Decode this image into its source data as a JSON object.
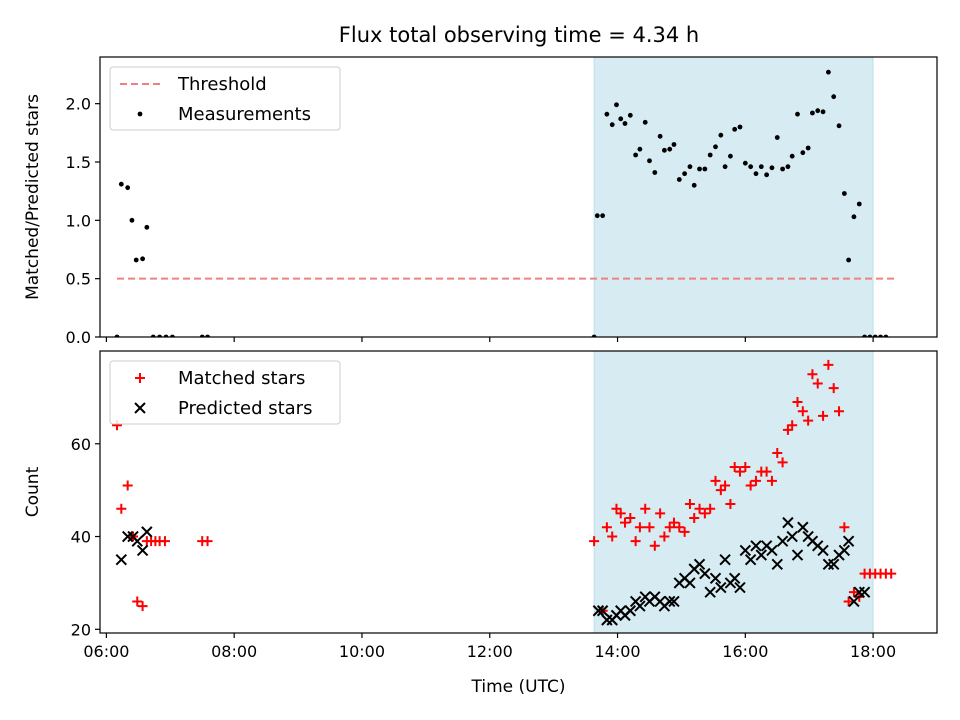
{
  "chart_data": [
    {
      "type": "scatter",
      "title": "Flux total observing time = 4.34 h",
      "ylabel": "Matched/Predicted stars",
      "xlabel": "",
      "xlim": [
        "05:54",
        "19:00"
      ],
      "ylim": [
        0,
        2.4
      ],
      "yticks": [
        0.0,
        0.5,
        1.0,
        1.5,
        2.0
      ],
      "ytick_labels": [
        "0.0",
        "0.5",
        "1.0",
        "1.5",
        "2.0"
      ],
      "xticks": [
        "06:00",
        "08:00",
        "10:00",
        "12:00",
        "14:00",
        "16:00",
        "18:00"
      ],
      "highlight_span": {
        "start": "13:38",
        "end": "18:00",
        "color": "#add8e6"
      },
      "legend": {
        "placement": "upper left",
        "entries": [
          "Threshold",
          "Measurements"
        ]
      },
      "series": [
        {
          "name": "Threshold",
          "style": "dashed-line",
          "color": "#f08080",
          "points": [
            [
              "06:10",
              0.5
            ],
            [
              "18:20",
              0.5
            ]
          ]
        },
        {
          "name": "Measurements",
          "style": "dot",
          "color": "#000000",
          "points": [
            [
              "06:10",
              0.0
            ],
            [
              "06:14",
              1.31
            ],
            [
              "06:20",
              1.28
            ],
            [
              "06:24",
              1.0
            ],
            [
              "06:28",
              0.66
            ],
            [
              "06:34",
              0.67
            ],
            [
              "06:38",
              0.94
            ],
            [
              "06:44",
              0.0
            ],
            [
              "06:50",
              0.0
            ],
            [
              "06:56",
              0.0
            ],
            [
              "07:02",
              0.0
            ],
            [
              "07:30",
              0.0
            ],
            [
              "07:35",
              0.0
            ],
            [
              "13:38",
              0.0
            ],
            [
              "13:41",
              1.04
            ],
            [
              "13:46",
              1.04
            ],
            [
              "13:50",
              1.91
            ],
            [
              "13:55",
              1.82
            ],
            [
              "13:59",
              1.99
            ],
            [
              "14:03",
              1.87
            ],
            [
              "14:07",
              1.83
            ],
            [
              "14:12",
              1.9
            ],
            [
              "14:17",
              1.56
            ],
            [
              "14:21",
              1.61
            ],
            [
              "14:26",
              1.84
            ],
            [
              "14:30",
              1.51
            ],
            [
              "14:35",
              1.41
            ],
            [
              "14:40",
              1.72
            ],
            [
              "14:44",
              1.6
            ],
            [
              "14:49",
              1.61
            ],
            [
              "14:53",
              1.65
            ],
            [
              "14:58",
              1.35
            ],
            [
              "15:03",
              1.4
            ],
            [
              "15:08",
              1.46
            ],
            [
              "15:12",
              1.3
            ],
            [
              "15:17",
              1.44
            ],
            [
              "15:22",
              1.44
            ],
            [
              "15:27",
              1.56
            ],
            [
              "15:32",
              1.63
            ],
            [
              "15:37",
              1.73
            ],
            [
              "15:41",
              1.46
            ],
            [
              "15:46",
              1.55
            ],
            [
              "15:50",
              1.78
            ],
            [
              "15:55",
              1.8
            ],
            [
              "16:00",
              1.49
            ],
            [
              "16:05",
              1.46
            ],
            [
              "16:10",
              1.4
            ],
            [
              "16:15",
              1.46
            ],
            [
              "16:20",
              1.39
            ],
            [
              "16:25",
              1.45
            ],
            [
              "16:30",
              1.71
            ],
            [
              "16:35",
              1.44
            ],
            [
              "16:40",
              1.46
            ],
            [
              "16:44",
              1.55
            ],
            [
              "16:49",
              1.91
            ],
            [
              "16:54",
              1.58
            ],
            [
              "16:59",
              1.62
            ],
            [
              "17:03",
              1.92
            ],
            [
              "17:08",
              1.94
            ],
            [
              "17:13",
              1.93
            ],
            [
              "17:18",
              2.27
            ],
            [
              "17:23",
              2.06
            ],
            [
              "17:28",
              1.81
            ],
            [
              "17:33",
              1.23
            ],
            [
              "17:37",
              0.66
            ],
            [
              "17:42",
              1.03
            ],
            [
              "17:47",
              1.14
            ],
            [
              "17:52",
              0.0
            ],
            [
              "17:57",
              0.0
            ],
            [
              "18:02",
              0.0
            ],
            [
              "18:07",
              0.0
            ],
            [
              "18:12",
              0.0
            ]
          ]
        }
      ]
    },
    {
      "type": "scatter",
      "title": "",
      "ylabel": "Count",
      "xlabel": "Time (UTC)",
      "xlim": [
        "05:54",
        "19:00"
      ],
      "ylim": [
        19.2,
        80
      ],
      "yticks": [
        20,
        40,
        60
      ],
      "ytick_labels": [
        "20",
        "40",
        "60"
      ],
      "xticks": [
        "06:00",
        "08:00",
        "10:00",
        "12:00",
        "14:00",
        "16:00",
        "18:00"
      ],
      "xtick_labels": [
        "06:00",
        "08:00",
        "10:00",
        "12:00",
        "14:00",
        "16:00",
        "18:00"
      ],
      "highlight_span": {
        "start": "13:38",
        "end": "18:00",
        "color": "#add8e6"
      },
      "legend": {
        "placement": "upper left",
        "entries": [
          "Matched stars",
          "Predicted stars"
        ]
      },
      "series": [
        {
          "name": "Matched stars",
          "style": "plus",
          "color": "#ff0000",
          "points": [
            [
              "06:10",
              64
            ],
            [
              "06:14",
              46
            ],
            [
              "06:20",
              51
            ],
            [
              "06:25",
              40
            ],
            [
              "06:29",
              26
            ],
            [
              "06:34",
              25
            ],
            [
              "06:38",
              39
            ],
            [
              "06:42",
              39
            ],
            [
              "06:46",
              39
            ],
            [
              "06:50",
              39
            ],
            [
              "06:55",
              39
            ],
            [
              "07:30",
              39
            ],
            [
              "07:35",
              39
            ],
            [
              "13:38",
              39
            ],
            [
              "13:46",
              24
            ],
            [
              "13:50",
              42
            ],
            [
              "13:55",
              40
            ],
            [
              "13:59",
              46
            ],
            [
              "14:03",
              45
            ],
            [
              "14:07",
              43
            ],
            [
              "14:12",
              44
            ],
            [
              "14:17",
              39
            ],
            [
              "14:21",
              42
            ],
            [
              "14:26",
              46
            ],
            [
              "14:30",
              42
            ],
            [
              "14:35",
              38
            ],
            [
              "14:40",
              45
            ],
            [
              "14:44",
              40
            ],
            [
              "14:49",
              42
            ],
            [
              "14:53",
              43
            ],
            [
              "14:58",
              42
            ],
            [
              "15:03",
              41
            ],
            [
              "15:08",
              47
            ],
            [
              "15:12",
              44
            ],
            [
              "15:17",
              46
            ],
            [
              "15:22",
              45
            ],
            [
              "15:27",
              46
            ],
            [
              "15:32",
              52
            ],
            [
              "15:37",
              50
            ],
            [
              "15:41",
              51
            ],
            [
              "15:46",
              47
            ],
            [
              "15:50",
              55
            ],
            [
              "15:55",
              54
            ],
            [
              "16:00",
              55
            ],
            [
              "16:05",
              51
            ],
            [
              "16:10",
              52
            ],
            [
              "16:15",
              54
            ],
            [
              "16:20",
              54
            ],
            [
              "16:25",
              52
            ],
            [
              "16:30",
              58
            ],
            [
              "16:35",
              56
            ],
            [
              "16:40",
              63
            ],
            [
              "16:44",
              64
            ],
            [
              "16:49",
              69
            ],
            [
              "16:54",
              67
            ],
            [
              "16:59",
              65
            ],
            [
              "17:03",
              75
            ],
            [
              "17:08",
              73
            ],
            [
              "17:13",
              66
            ],
            [
              "17:18",
              77
            ],
            [
              "17:23",
              72
            ],
            [
              "17:28",
              67
            ],
            [
              "17:33",
              42
            ],
            [
              "17:37",
              26
            ],
            [
              "17:42",
              28
            ],
            [
              "17:47",
              27
            ],
            [
              "17:52",
              32
            ],
            [
              "17:57",
              32
            ],
            [
              "18:02",
              32
            ],
            [
              "18:07",
              32
            ],
            [
              "18:12",
              32
            ],
            [
              "18:17",
              32
            ]
          ]
        },
        {
          "name": "Predicted stars",
          "style": "x",
          "color": "#000000",
          "points": [
            [
              "06:14",
              35
            ],
            [
              "06:20",
              40
            ],
            [
              "06:25",
              40
            ],
            [
              "06:29",
              39
            ],
            [
              "06:34",
              37
            ],
            [
              "06:38",
              41
            ],
            [
              "13:42",
              24
            ],
            [
              "13:46",
              24
            ],
            [
              "13:50",
              22
            ],
            [
              "13:55",
              22
            ],
            [
              "13:59",
              23
            ],
            [
              "14:03",
              24
            ],
            [
              "14:07",
              23
            ],
            [
              "14:12",
              24
            ],
            [
              "14:17",
              26
            ],
            [
              "14:21",
              25
            ],
            [
              "14:26",
              27
            ],
            [
              "14:30",
              26
            ],
            [
              "14:35",
              27
            ],
            [
              "14:40",
              26
            ],
            [
              "14:44",
              25
            ],
            [
              "14:49",
              26
            ],
            [
              "14:53",
              26
            ],
            [
              "14:58",
              30
            ],
            [
              "15:03",
              31
            ],
            [
              "15:08",
              30
            ],
            [
              "15:12",
              33
            ],
            [
              "15:17",
              34
            ],
            [
              "15:22",
              32
            ],
            [
              "15:27",
              28
            ],
            [
              "15:32",
              31
            ],
            [
              "15:37",
              29
            ],
            [
              "15:41",
              35
            ],
            [
              "15:46",
              30
            ],
            [
              "15:50",
              31
            ],
            [
              "15:55",
              29
            ],
            [
              "16:00",
              37
            ],
            [
              "16:05",
              35
            ],
            [
              "16:10",
              38
            ],
            [
              "16:15",
              36
            ],
            [
              "16:20",
              38
            ],
            [
              "16:25",
              37
            ],
            [
              "16:30",
              34
            ],
            [
              "16:35",
              39
            ],
            [
              "16:40",
              43
            ],
            [
              "16:44",
              40
            ],
            [
              "16:49",
              36
            ],
            [
              "16:54",
              42
            ],
            [
              "16:59",
              40
            ],
            [
              "17:03",
              39
            ],
            [
              "17:08",
              38
            ],
            [
              "17:13",
              37
            ],
            [
              "17:18",
              34
            ],
            [
              "17:23",
              34
            ],
            [
              "17:28",
              36
            ],
            [
              "17:33",
              37
            ],
            [
              "17:37",
              39
            ],
            [
              "17:42",
              26
            ],
            [
              "17:47",
              28
            ],
            [
              "17:52",
              28
            ]
          ]
        }
      ]
    }
  ]
}
